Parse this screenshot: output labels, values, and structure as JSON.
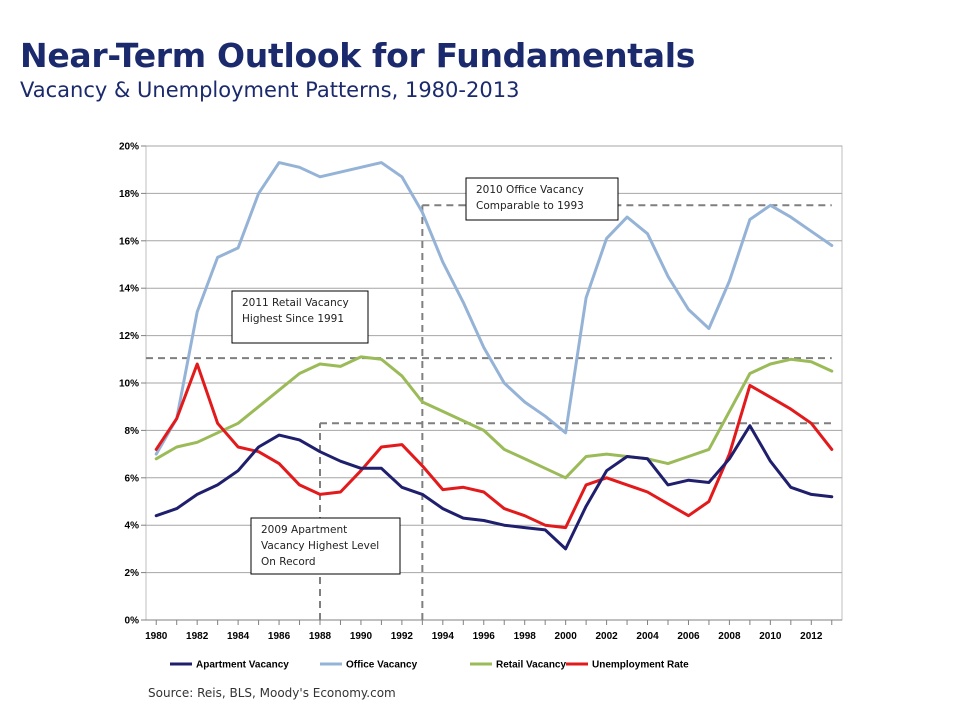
{
  "header": {
    "title": "Near-Term Outlook for Fundamentals",
    "subtitle": "Vacancy & Unemployment Patterns, 1980-2013"
  },
  "footer": {
    "source": "Source:  Reis, BLS, Moody's Economy.com"
  },
  "chart_data": {
    "type": "line",
    "x": [
      1980,
      1981,
      1982,
      1983,
      1984,
      1985,
      1986,
      1987,
      1988,
      1989,
      1990,
      1991,
      1992,
      1993,
      1994,
      1995,
      1996,
      1997,
      1998,
      1999,
      2000,
      2001,
      2002,
      2003,
      2004,
      2005,
      2006,
      2007,
      2008,
      2009,
      2010,
      2011,
      2012,
      2013
    ],
    "x_tick_labels": [
      "1980",
      "1982",
      "1984",
      "1986",
      "1988",
      "1990",
      "1992",
      "1994",
      "1996",
      "1998",
      "2000",
      "2002",
      "2004",
      "2006",
      "2008",
      "2010",
      "2012"
    ],
    "y_tick_labels": [
      "0%",
      "2%",
      "4%",
      "6%",
      "8%",
      "10%",
      "12%",
      "14%",
      "16%",
      "18%",
      "20%"
    ],
    "ylim": [
      0,
      20
    ],
    "grid": true,
    "legend_position": "bottom",
    "series": [
      {
        "name": "Apartment Vacancy",
        "color": "#1f1f6e",
        "values": [
          4.4,
          4.7,
          5.3,
          5.7,
          6.3,
          7.3,
          7.8,
          7.6,
          7.1,
          6.7,
          6.4,
          6.4,
          5.6,
          5.3,
          4.7,
          4.3,
          4.2,
          4.0,
          3.9,
          3.8,
          3.0,
          4.8,
          6.3,
          6.9,
          6.8,
          5.7,
          5.9,
          5.8,
          6.8,
          8.2,
          6.7,
          5.6,
          5.3,
          5.2
        ]
      },
      {
        "name": "Office Vacancy",
        "color": "#95b3d7",
        "values": [
          7.0,
          8.5,
          13.0,
          15.3,
          15.7,
          18.0,
          19.3,
          19.1,
          18.7,
          18.9,
          19.1,
          19.3,
          18.7,
          17.2,
          15.1,
          13.4,
          11.5,
          10.0,
          9.2,
          8.6,
          7.9,
          13.6,
          16.1,
          17.0,
          16.3,
          14.5,
          13.1,
          12.3,
          14.3,
          16.9,
          17.5,
          17.0,
          16.4,
          15.8
        ]
      },
      {
        "name": "Retail Vacancy",
        "color": "#9bbb59",
        "values": [
          6.8,
          7.3,
          7.5,
          7.9,
          8.3,
          9.0,
          9.7,
          10.4,
          10.8,
          10.7,
          11.1,
          11.0,
          10.3,
          9.2,
          8.8,
          8.4,
          8.0,
          7.2,
          6.8,
          6.4,
          6.0,
          6.9,
          7.0,
          6.9,
          6.8,
          6.6,
          6.9,
          7.2,
          8.8,
          10.4,
          10.8,
          11.0,
          10.9,
          10.5
        ]
      },
      {
        "name": "Unemployment Rate",
        "color": "#e31a1c",
        "values": [
          7.2,
          8.5,
          10.8,
          8.3,
          7.3,
          7.1,
          6.6,
          5.7,
          5.3,
          5.4,
          6.3,
          7.3,
          7.4,
          6.5,
          5.5,
          5.6,
          5.4,
          4.7,
          4.4,
          4.0,
          3.9,
          5.7,
          6.0,
          5.7,
          5.4,
          4.9,
          4.4,
          5.0,
          7.0,
          9.9,
          9.4,
          8.9,
          8.3,
          7.2
        ]
      }
    ],
    "reference_lines": [
      {
        "kind": "horizontal",
        "y": 17.5,
        "x_from": 1993,
        "x_to": 2013
      },
      {
        "kind": "horizontal",
        "y": 11.05,
        "x_from": 1979.5,
        "x_to": 2013
      },
      {
        "kind": "horizontal",
        "y": 8.3,
        "x_from": 1988,
        "x_to": 2013
      },
      {
        "kind": "vertical",
        "x": 1993,
        "y_from": 0,
        "y_to": 17.5
      },
      {
        "kind": "vertical",
        "x": 1988,
        "y_from": 0,
        "y_to": 8.3
      }
    ],
    "annotations": [
      {
        "lines": [
          "2010 Office Vacancy",
          "Comparable to 1993"
        ]
      },
      {
        "lines": [
          "2011 Retail Vacancy",
          "Highest Since 1991"
        ]
      },
      {
        "lines": [
          "2009 Apartment",
          "Vacancy Highest Level",
          "On Record"
        ]
      }
    ]
  }
}
